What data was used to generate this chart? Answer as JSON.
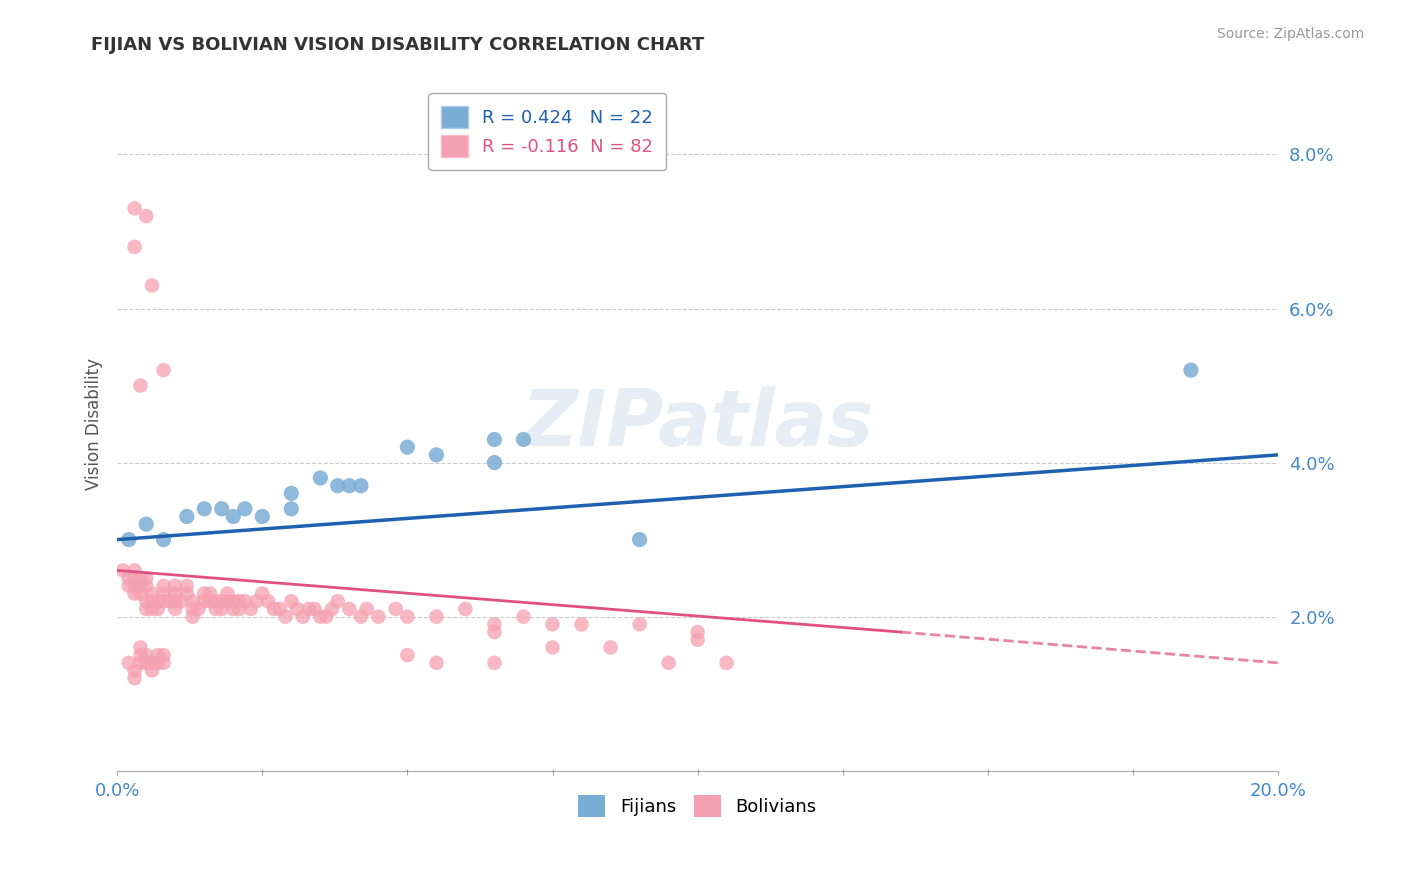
{
  "title": "FIJIAN VS BOLIVIAN VISION DISABILITY CORRELATION CHART",
  "source": "Source: ZipAtlas.com",
  "ylabel": "Vision Disability",
  "xlim": [
    0.0,
    0.2
  ],
  "ylim": [
    0.0,
    0.09
  ],
  "yticks": [
    0.02,
    0.04,
    0.06,
    0.08
  ],
  "ytick_labels": [
    "2.0%",
    "4.0%",
    "6.0%",
    "8.0%"
  ],
  "xticks": [
    0.0,
    0.025,
    0.05,
    0.075,
    0.1,
    0.125,
    0.15,
    0.175,
    0.2
  ],
  "xtick_labels": [
    "0.0%",
    "",
    "",
    "",
    "",
    "",
    "",
    "",
    "20.0%"
  ],
  "fijian_R": 0.424,
  "fijian_N": 22,
  "bolivian_R": -0.116,
  "bolivian_N": 82,
  "fijian_color": "#7aadd4",
  "bolivian_color": "#f5a0b0",
  "fijian_line_color": "#2060b0",
  "bolivian_line_color": "#e05080",
  "background_color": "#ffffff",
  "grid_color": "#cccccc",
  "watermark": "ZIPatlas",
  "fijian_line": {
    "x0": 0.0,
    "y0": 0.03,
    "x1": 0.2,
    "y1": 0.041
  },
  "bolivian_line_solid": {
    "x0": 0.0,
    "y0": 0.026,
    "x1": 0.135,
    "y1": 0.018
  },
  "bolivian_line_dash": {
    "x0": 0.135,
    "y0": 0.018,
    "x1": 0.2,
    "y1": 0.014
  },
  "fijian_points": [
    [
      0.002,
      0.03
    ],
    [
      0.005,
      0.032
    ],
    [
      0.008,
      0.03
    ],
    [
      0.012,
      0.033
    ],
    [
      0.015,
      0.034
    ],
    [
      0.018,
      0.034
    ],
    [
      0.02,
      0.033
    ],
    [
      0.022,
      0.034
    ],
    [
      0.025,
      0.033
    ],
    [
      0.03,
      0.036
    ],
    [
      0.03,
      0.034
    ],
    [
      0.035,
      0.038
    ],
    [
      0.038,
      0.037
    ],
    [
      0.04,
      0.037
    ],
    [
      0.042,
      0.037
    ],
    [
      0.05,
      0.042
    ],
    [
      0.055,
      0.041
    ],
    [
      0.065,
      0.043
    ],
    [
      0.065,
      0.04
    ],
    [
      0.07,
      0.043
    ],
    [
      0.09,
      0.03
    ],
    [
      0.185,
      0.052
    ]
  ],
  "bolivian_points": [
    [
      0.001,
      0.026
    ],
    [
      0.002,
      0.025
    ],
    [
      0.002,
      0.024
    ],
    [
      0.003,
      0.026
    ],
    [
      0.003,
      0.025
    ],
    [
      0.003,
      0.024
    ],
    [
      0.003,
      0.023
    ],
    [
      0.004,
      0.025
    ],
    [
      0.004,
      0.024
    ],
    [
      0.004,
      0.023
    ],
    [
      0.005,
      0.025
    ],
    [
      0.005,
      0.024
    ],
    [
      0.005,
      0.022
    ],
    [
      0.005,
      0.021
    ],
    [
      0.006,
      0.023
    ],
    [
      0.006,
      0.022
    ],
    [
      0.006,
      0.021
    ],
    [
      0.007,
      0.022
    ],
    [
      0.007,
      0.021
    ],
    [
      0.008,
      0.024
    ],
    [
      0.008,
      0.023
    ],
    [
      0.008,
      0.022
    ],
    [
      0.009,
      0.022
    ],
    [
      0.01,
      0.024
    ],
    [
      0.01,
      0.023
    ],
    [
      0.01,
      0.022
    ],
    [
      0.01,
      0.021
    ],
    [
      0.011,
      0.022
    ],
    [
      0.012,
      0.024
    ],
    [
      0.012,
      0.023
    ],
    [
      0.013,
      0.022
    ],
    [
      0.013,
      0.021
    ],
    [
      0.013,
      0.02
    ],
    [
      0.014,
      0.021
    ],
    [
      0.015,
      0.023
    ],
    [
      0.015,
      0.022
    ],
    [
      0.016,
      0.023
    ],
    [
      0.016,
      0.022
    ],
    [
      0.017,
      0.022
    ],
    [
      0.017,
      0.021
    ],
    [
      0.018,
      0.022
    ],
    [
      0.018,
      0.021
    ],
    [
      0.019,
      0.023
    ],
    [
      0.019,
      0.022
    ],
    [
      0.02,
      0.022
    ],
    [
      0.02,
      0.021
    ],
    [
      0.021,
      0.022
    ],
    [
      0.021,
      0.021
    ],
    [
      0.022,
      0.022
    ],
    [
      0.023,
      0.021
    ],
    [
      0.024,
      0.022
    ],
    [
      0.025,
      0.023
    ],
    [
      0.026,
      0.022
    ],
    [
      0.027,
      0.021
    ],
    [
      0.028,
      0.021
    ],
    [
      0.029,
      0.02
    ],
    [
      0.03,
      0.022
    ],
    [
      0.031,
      0.021
    ],
    [
      0.032,
      0.02
    ],
    [
      0.033,
      0.021
    ],
    [
      0.034,
      0.021
    ],
    [
      0.035,
      0.02
    ],
    [
      0.036,
      0.02
    ],
    [
      0.037,
      0.021
    ],
    [
      0.038,
      0.022
    ],
    [
      0.04,
      0.021
    ],
    [
      0.042,
      0.02
    ],
    [
      0.043,
      0.021
    ],
    [
      0.045,
      0.02
    ],
    [
      0.048,
      0.021
    ],
    [
      0.05,
      0.02
    ],
    [
      0.055,
      0.02
    ],
    [
      0.06,
      0.021
    ],
    [
      0.065,
      0.019
    ],
    [
      0.065,
      0.018
    ],
    [
      0.07,
      0.02
    ],
    [
      0.075,
      0.019
    ],
    [
      0.08,
      0.019
    ],
    [
      0.09,
      0.019
    ],
    [
      0.1,
      0.018
    ],
    [
      0.003,
      0.073
    ],
    [
      0.005,
      0.072
    ],
    [
      0.006,
      0.063
    ],
    [
      0.008,
      0.052
    ],
    [
      0.003,
      0.068
    ],
    [
      0.004,
      0.05
    ],
    [
      0.002,
      0.014
    ],
    [
      0.003,
      0.013
    ],
    [
      0.003,
      0.012
    ],
    [
      0.004,
      0.016
    ],
    [
      0.004,
      0.015
    ],
    [
      0.004,
      0.014
    ],
    [
      0.005,
      0.015
    ],
    [
      0.005,
      0.014
    ],
    [
      0.006,
      0.014
    ],
    [
      0.006,
      0.013
    ],
    [
      0.007,
      0.015
    ],
    [
      0.007,
      0.014
    ],
    [
      0.008,
      0.015
    ],
    [
      0.008,
      0.014
    ],
    [
      0.05,
      0.015
    ],
    [
      0.055,
      0.014
    ],
    [
      0.065,
      0.014
    ],
    [
      0.075,
      0.016
    ],
    [
      0.085,
      0.016
    ],
    [
      0.095,
      0.014
    ],
    [
      0.1,
      0.017
    ],
    [
      0.105,
      0.014
    ]
  ]
}
